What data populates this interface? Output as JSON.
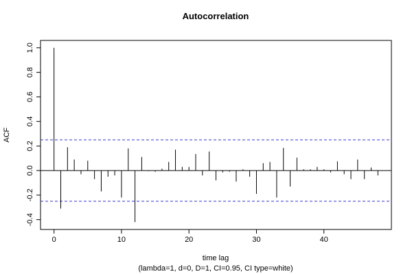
{
  "chart_data": {
    "type": "bar",
    "title": "Autocorrelation",
    "xlabel": "time lag",
    "subtitle": "(lambda=1, d=0, D=1, CI=0.95, CI type=white)",
    "ylabel": "ACF",
    "xlim": [
      -2,
      50
    ],
    "ylim": [
      -0.48,
      1.06
    ],
    "x_ticks": [
      0,
      10,
      20,
      30,
      40
    ],
    "y_ticks": [
      -0.4,
      -0.2,
      0.0,
      0.2,
      0.4,
      0.6,
      0.8,
      1.0
    ],
    "y_tick_labels": [
      "-0.4",
      "-0.2",
      "0.0",
      "0.2",
      "0.4",
      "0.6",
      "0.8",
      "1.0"
    ],
    "confidence_bounds": [
      0.25,
      -0.25
    ],
    "confidence_color": "#3333cc",
    "lags": [
      0,
      1,
      2,
      3,
      4,
      5,
      6,
      7,
      8,
      9,
      10,
      11,
      12,
      13,
      14,
      15,
      16,
      17,
      18,
      19,
      20,
      21,
      22,
      23,
      24,
      25,
      26,
      27,
      28,
      29,
      30,
      31,
      32,
      33,
      34,
      35,
      36,
      37,
      38,
      39,
      40,
      41,
      42,
      43,
      44,
      45,
      46,
      47,
      48
    ],
    "values": [
      1.0,
      -0.31,
      0.19,
      0.09,
      -0.03,
      0.08,
      -0.07,
      -0.17,
      -0.05,
      -0.04,
      -0.22,
      0.18,
      -0.42,
      0.11,
      -0.005,
      -0.01,
      0.015,
      0.07,
      0.17,
      0.03,
      0.03,
      0.135,
      -0.04,
      0.155,
      -0.08,
      -0.015,
      -0.01,
      -0.09,
      0.01,
      -0.05,
      -0.19,
      0.06,
      0.07,
      -0.22,
      0.185,
      -0.13,
      0.105,
      0.01,
      0.01,
      0.03,
      0.01,
      -0.015,
      0.075,
      -0.03,
      -0.07,
      0.09,
      -0.07,
      0.025,
      -0.04
    ]
  }
}
